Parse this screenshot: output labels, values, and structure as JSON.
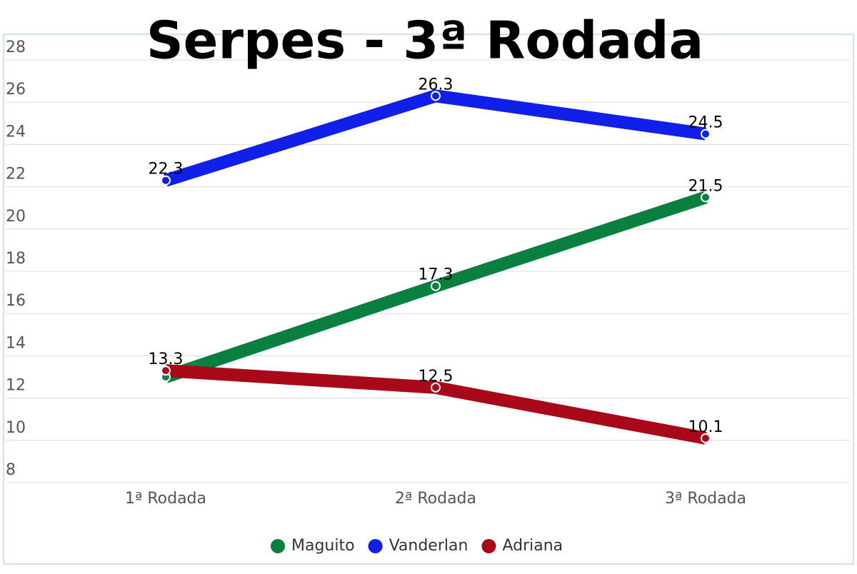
{
  "chart_data": {
    "type": "line",
    "title": "Serpes - 3ª Rodada",
    "categories": [
      "1ª Rodada",
      "2ª Rodada",
      "3ª Rodada"
    ],
    "series": [
      {
        "name": "Maguito",
        "color": "#0a8040",
        "values": [
          13.0,
          17.3,
          21.5
        ],
        "value_labels": [
          null,
          "17.3",
          "21.5"
        ]
      },
      {
        "name": "Vanderlan",
        "color": "#1020e8",
        "values": [
          22.3,
          26.3,
          24.5
        ]
      },
      {
        "name": "Adriana",
        "color": "#a80818",
        "values": [
          13.3,
          12.5,
          10.1
        ]
      }
    ],
    "ylim": [
      8,
      28
    ],
    "yticks": [
      8,
      10,
      12,
      14,
      16,
      18,
      20,
      22,
      24,
      26,
      28
    ],
    "grid": true
  }
}
